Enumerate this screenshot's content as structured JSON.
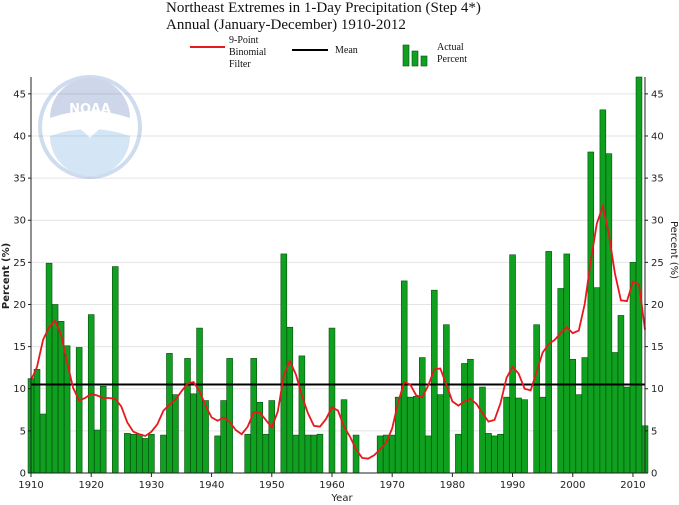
{
  "chart_data": {
    "type": "bar",
    "title": "Northeast Extremes in 1-Day Precipitation (Step 4*)",
    "subtitle": "Annual (January-December) 1910-2012",
    "xlabel": "Year",
    "ylabel": "Percent (%)",
    "ylabel_right": "Percent (%)",
    "xlim": [
      1910,
      2012
    ],
    "ylim": [
      0,
      47
    ],
    "x_ticks": [
      1910,
      1920,
      1930,
      1940,
      1950,
      1960,
      1970,
      1980,
      1990,
      2000,
      2010
    ],
    "y_ticks": [
      0,
      5,
      10,
      15,
      20,
      25,
      30,
      35,
      40,
      45
    ],
    "grid": true,
    "mean": 10.5,
    "legend": {
      "filter_lines": [
        "9-Point",
        "Binomial",
        "Filter"
      ],
      "mean": "Mean",
      "actual_lines": [
        "Actual",
        "Percent"
      ]
    },
    "logo": "NOAA",
    "colors": {
      "bars": "#0fa01f",
      "filter": "#e8191e",
      "mean": "#000000"
    },
    "years": [
      1910,
      1911,
      1912,
      1913,
      1914,
      1915,
      1916,
      1917,
      1918,
      1919,
      1920,
      1921,
      1922,
      1923,
      1924,
      1925,
      1926,
      1927,
      1928,
      1929,
      1930,
      1931,
      1932,
      1933,
      1934,
      1935,
      1936,
      1937,
      1938,
      1939,
      1940,
      1941,
      1942,
      1943,
      1944,
      1945,
      1946,
      1947,
      1948,
      1949,
      1950,
      1951,
      1952,
      1953,
      1954,
      1955,
      1956,
      1957,
      1958,
      1959,
      1960,
      1961,
      1962,
      1963,
      1964,
      1965,
      1966,
      1967,
      1968,
      1969,
      1970,
      1971,
      1972,
      1973,
      1974,
      1975,
      1976,
      1977,
      1978,
      1979,
      1980,
      1981,
      1982,
      1983,
      1984,
      1985,
      1986,
      1987,
      1988,
      1989,
      1990,
      1991,
      1992,
      1993,
      1994,
      1995,
      1996,
      1997,
      1998,
      1999,
      2000,
      2001,
      2002,
      2003,
      2004,
      2005,
      2006,
      2007,
      2008,
      2009,
      2010,
      2011,
      2012
    ],
    "series": [
      {
        "type": "bar",
        "values": [
          11.2,
          12.3,
          7.0,
          24.9,
          20.0,
          18.0,
          15.1,
          0,
          14.9,
          0,
          18.8,
          5.1,
          10.3,
          0,
          24.5,
          0,
          4.7,
          4.6,
          4.6,
          4.1,
          4.6,
          0,
          4.5,
          14.2,
          9.3,
          0,
          13.6,
          9.4,
          17.2,
          8.6,
          0,
          4.4,
          8.6,
          13.6,
          0,
          0,
          4.6,
          13.6,
          8.4,
          4.6,
          8.6,
          0,
          26.0,
          17.3,
          4.5,
          13.9,
          4.5,
          4.5,
          4.6,
          0,
          17.2,
          0,
          8.7,
          0,
          4.5,
          0,
          0,
          0,
          4.4,
          4.5,
          4.5,
          9.0,
          22.8,
          9.0,
          9.1,
          13.7,
          4.4,
          21.7,
          9.3,
          17.6,
          0,
          4.6,
          13.0,
          13.5,
          0,
          10.2,
          4.7,
          4.4,
          4.6,
          9.0,
          25.9,
          8.9,
          8.7,
          0,
          17.6,
          9.0,
          26.3,
          0,
          21.9,
          26.0,
          13.5,
          9.3,
          13.7,
          38.1,
          22.0,
          43.1,
          37.9,
          14.3,
          18.7,
          10.2,
          25.0,
          47.0,
          5.6
        ]
      },
      {
        "type": "line",
        "values": [
          11.0,
          12.6,
          15.8,
          17.3,
          18.1,
          16.4,
          13.1,
          10.1,
          8.6,
          8.9,
          9.4,
          9.2,
          8.9,
          8.9,
          8.8,
          7.9,
          6.0,
          4.9,
          4.6,
          4.4,
          4.9,
          5.8,
          7.4,
          8.1,
          8.7,
          9.7,
          10.6,
          10.8,
          9.7,
          8.0,
          6.6,
          6.2,
          6.6,
          6.1,
          5.1,
          4.6,
          5.5,
          7.2,
          7.2,
          6.3,
          5.4,
          7.3,
          11.6,
          13.3,
          11.7,
          9.2,
          7.1,
          5.6,
          5.5,
          6.4,
          7.8,
          7.4,
          5.5,
          4.3,
          2.8,
          1.8,
          1.7,
          2.1,
          2.8,
          3.6,
          5.3,
          8.4,
          10.8,
          10.5,
          9.2,
          9.0,
          10.4,
          12.3,
          12.4,
          10.5,
          8.5,
          8.0,
          8.5,
          8.8,
          8.2,
          7.1,
          6.1,
          6.3,
          8.3,
          11.3,
          12.6,
          11.8,
          10.0,
          9.8,
          12.0,
          14.3,
          15.3,
          15.8,
          16.6,
          17.3,
          16.6,
          16.9,
          20.1,
          25.2,
          29.6,
          31.7,
          28.3,
          23.7,
          20.5,
          20.4,
          22.7,
          22.4,
          17.0
        ]
      }
    ]
  }
}
